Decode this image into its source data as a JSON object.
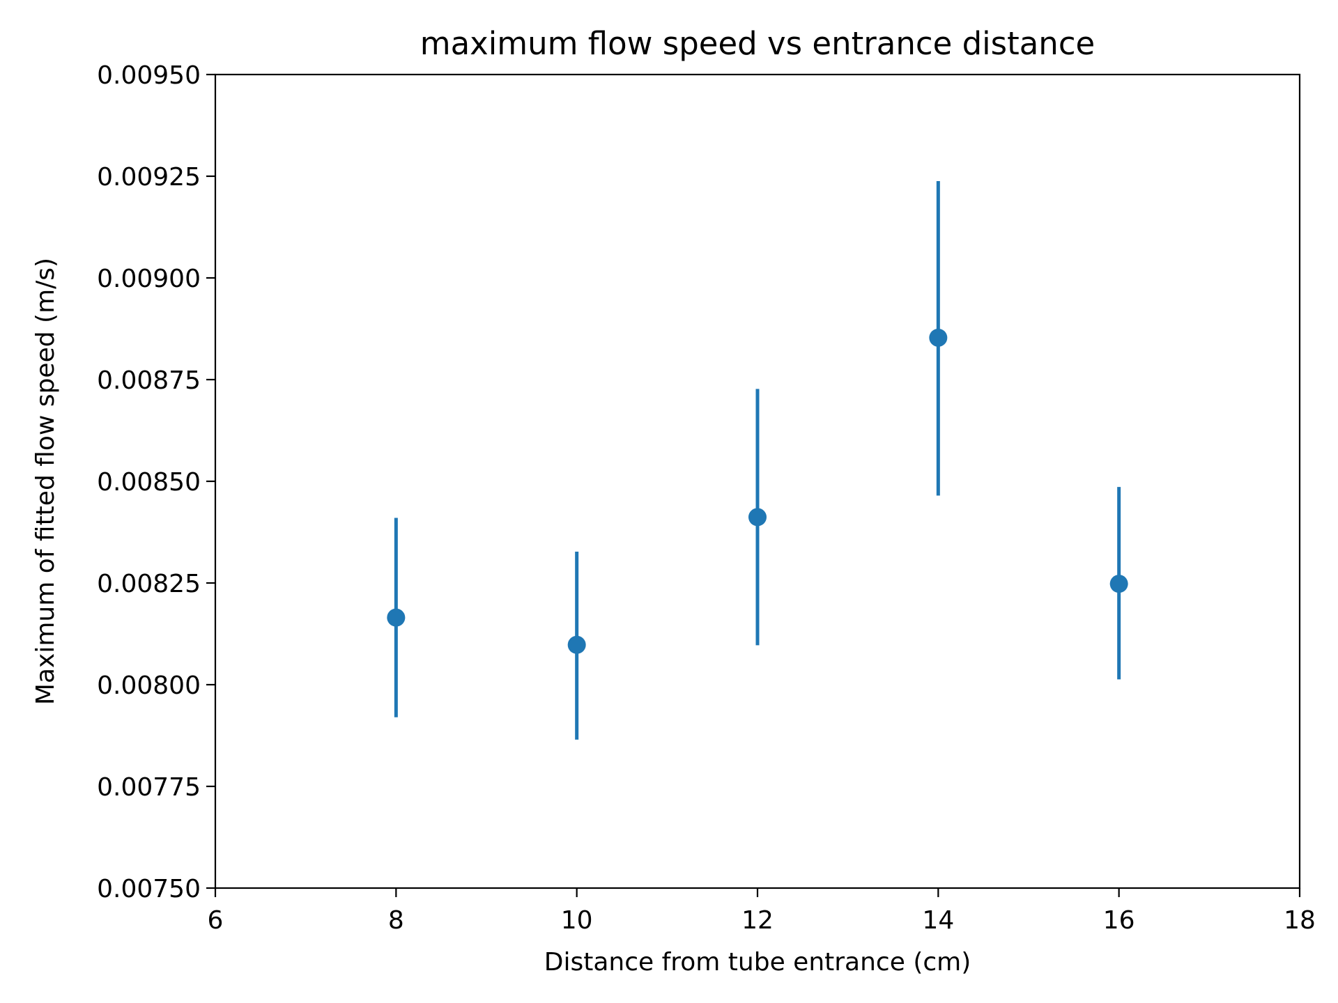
{
  "chart_data": {
    "type": "scatter",
    "title": "maximum flow speed vs entrance distance",
    "xlabel": "Distance from tube entrance (cm)",
    "ylabel": "Maximum of fitted flow speed (m/s)",
    "xlim": [
      6,
      18
    ],
    "ylim": [
      0.0075,
      0.0095
    ],
    "x_ticks": [
      "6",
      "8",
      "10",
      "12",
      "14",
      "16",
      "18"
    ],
    "y_ticks": [
      "0.00750",
      "0.00775",
      "0.00800",
      "0.00825",
      "0.00850",
      "0.00875",
      "0.00900",
      "0.00925",
      "0.00950"
    ],
    "grid": false,
    "legend": "none",
    "series": [
      {
        "color": "#1f77b4",
        "marker": "circle",
        "error_bars": "vertical",
        "points": [
          {
            "x": 8,
            "y": 0.008165,
            "yerr_low": 0.00792,
            "yerr_high": 0.00841
          },
          {
            "x": 10,
            "y": 0.008098,
            "yerr_low": 0.007865,
            "yerr_high": 0.008327
          },
          {
            "x": 12,
            "y": 0.008412,
            "yerr_low": 0.008097,
            "yerr_high": 0.008727
          },
          {
            "x": 14,
            "y": 0.008853,
            "yerr_low": 0.008465,
            "yerr_high": 0.009238
          },
          {
            "x": 16,
            "y": 0.008248,
            "yerr_low": 0.008013,
            "yerr_high": 0.008486
          }
        ]
      }
    ]
  }
}
